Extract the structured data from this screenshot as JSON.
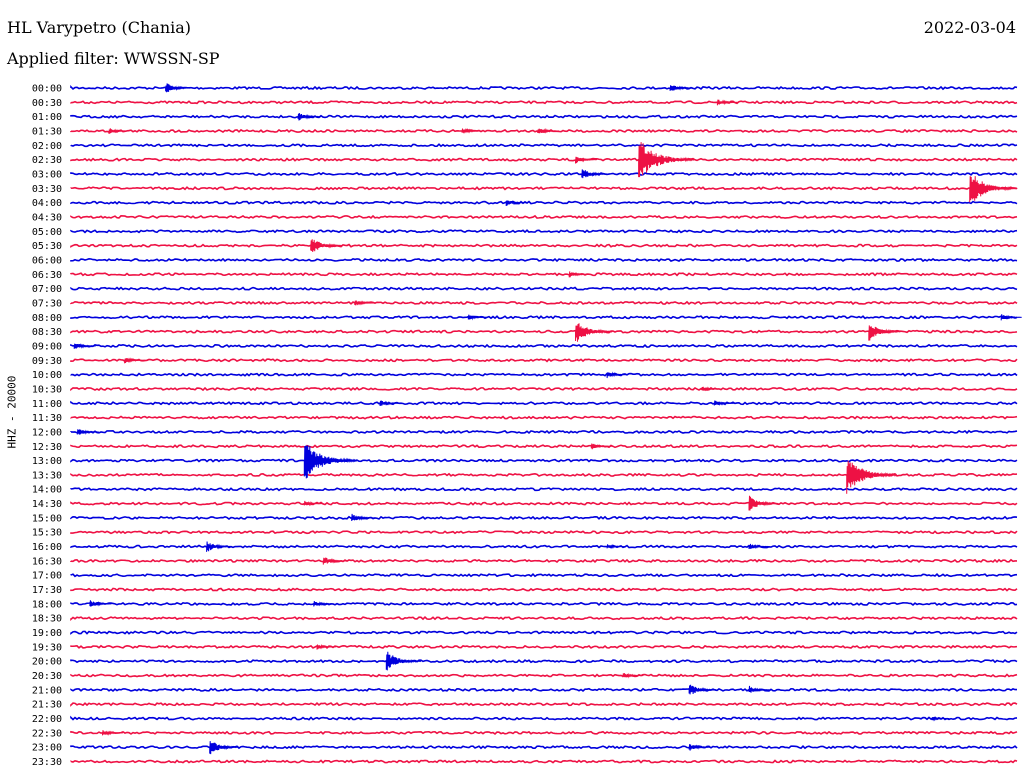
{
  "header": {
    "station": "HL Varypetro (Chania)",
    "date": "2022-03-04",
    "filter": "Applied filter: WWSSN-SP"
  },
  "chart_data": {
    "type": "line",
    "subtype": "helicorder",
    "ylabel": "HHZ - 20000",
    "colors": [
      "#0000dd",
      "#ee1144"
    ],
    "row_labels": [
      "00:00",
      "00:30",
      "01:00",
      "01:30",
      "02:00",
      "02:30",
      "03:00",
      "03:30",
      "04:00",
      "04:30",
      "05:00",
      "05:30",
      "06:00",
      "06:30",
      "07:00",
      "07:30",
      "08:00",
      "08:30",
      "09:00",
      "09:30",
      "10:00",
      "10:30",
      "11:00",
      "11:30",
      "12:00",
      "12:30",
      "13:00",
      "13:30",
      "14:00",
      "14:30",
      "15:00",
      "15:30",
      "16:00",
      "16:30",
      "17:00",
      "17:30",
      "18:00",
      "18:30",
      "19:00",
      "19:30",
      "20:00",
      "20:30",
      "21:00",
      "21:30",
      "22:00",
      "22:30",
      "23:00",
      "23:30"
    ],
    "row_duration_min": 30,
    "events": [
      {
        "row": 0,
        "minute": 3.0,
        "amplitude": 0.45
      },
      {
        "row": 0,
        "minute": 19.0,
        "amplitude": 0.35
      },
      {
        "row": 1,
        "minute": 20.5,
        "amplitude": 0.25
      },
      {
        "row": 2,
        "minute": 7.2,
        "amplitude": 0.35
      },
      {
        "row": 3,
        "minute": 1.2,
        "amplitude": 0.25
      },
      {
        "row": 3,
        "minute": 12.4,
        "amplitude": 0.25
      },
      {
        "row": 3,
        "minute": 14.8,
        "amplitude": 0.3
      },
      {
        "row": 5,
        "minute": 16.0,
        "amplitude": 0.3
      },
      {
        "row": 5,
        "minute": 18.0,
        "amplitude": 1.6
      },
      {
        "row": 6,
        "minute": 16.2,
        "amplitude": 0.45
      },
      {
        "row": 7,
        "minute": 28.5,
        "amplitude": 1.3
      },
      {
        "row": 8,
        "minute": 13.8,
        "amplitude": 0.25
      },
      {
        "row": 11,
        "minute": 7.6,
        "amplitude": 0.7
      },
      {
        "row": 13,
        "minute": 15.8,
        "amplitude": 0.25
      },
      {
        "row": 15,
        "minute": 9.0,
        "amplitude": 0.25
      },
      {
        "row": 16,
        "minute": 12.6,
        "amplitude": 0.2
      },
      {
        "row": 16,
        "minute": 29.5,
        "amplitude": 0.25
      },
      {
        "row": 17,
        "minute": 16.0,
        "amplitude": 0.9
      },
      {
        "row": 17,
        "minute": 25.3,
        "amplitude": 0.7
      },
      {
        "row": 18,
        "minute": 0.1,
        "amplitude": 0.3
      },
      {
        "row": 19,
        "minute": 1.7,
        "amplitude": 0.25
      },
      {
        "row": 20,
        "minute": 17.0,
        "amplitude": 0.25
      },
      {
        "row": 21,
        "minute": 20.0,
        "amplitude": 0.2
      },
      {
        "row": 22,
        "minute": 9.8,
        "amplitude": 0.25
      },
      {
        "row": 22,
        "minute": 20.4,
        "amplitude": 0.25
      },
      {
        "row": 24,
        "minute": 0.2,
        "amplitude": 0.3
      },
      {
        "row": 25,
        "minute": 16.5,
        "amplitude": 0.25
      },
      {
        "row": 26,
        "minute": 7.4,
        "amplitude": 1.5
      },
      {
        "row": 27,
        "minute": 24.6,
        "amplitude": 1.4
      },
      {
        "row": 29,
        "minute": 7.4,
        "amplitude": 0.2
      },
      {
        "row": 29,
        "minute": 21.5,
        "amplitude": 0.6
      },
      {
        "row": 30,
        "minute": 8.9,
        "amplitude": 0.35
      },
      {
        "row": 32,
        "minute": 4.3,
        "amplitude": 0.45
      },
      {
        "row": 32,
        "minute": 17.0,
        "amplitude": 0.2
      },
      {
        "row": 32,
        "minute": 21.5,
        "amplitude": 0.25
      },
      {
        "row": 33,
        "minute": 8.0,
        "amplitude": 0.35
      },
      {
        "row": 36,
        "minute": 0.6,
        "amplitude": 0.3
      },
      {
        "row": 36,
        "minute": 7.7,
        "amplitude": 0.25
      },
      {
        "row": 39,
        "minute": 7.8,
        "amplitude": 0.2
      },
      {
        "row": 40,
        "minute": 10.0,
        "amplitude": 0.8
      },
      {
        "row": 41,
        "minute": 17.5,
        "amplitude": 0.25
      },
      {
        "row": 42,
        "minute": 19.6,
        "amplitude": 0.5
      },
      {
        "row": 42,
        "minute": 21.5,
        "amplitude": 0.3
      },
      {
        "row": 44,
        "minute": 27.3,
        "amplitude": 0.15
      },
      {
        "row": 45,
        "minute": 1.0,
        "amplitude": 0.25
      },
      {
        "row": 46,
        "minute": 4.4,
        "amplitude": 0.6
      },
      {
        "row": 46,
        "minute": 19.6,
        "amplitude": 0.3
      }
    ]
  }
}
